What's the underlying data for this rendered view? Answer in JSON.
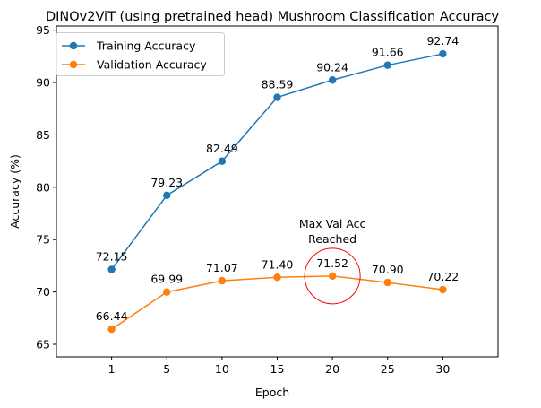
{
  "chart_data": {
    "type": "line",
    "title": "DINOv2ViT (using pretrained head) Mushroom Classification Accuracy",
    "xlabel": "Epoch",
    "ylabel": "Accuracy (%)",
    "x": [
      "1",
      "5",
      "10",
      "15",
      "20",
      "25",
      "30"
    ],
    "xlim": [
      0,
      8
    ],
    "ylim": [
      63.8,
      95.4
    ],
    "yticks": [
      65,
      70,
      75,
      80,
      85,
      90,
      95
    ],
    "grid": false,
    "legend_position": "top-left",
    "series": [
      {
        "name": "Training Accuracy",
        "color": "#1f77b4",
        "values": [
          72.15,
          79.23,
          82.49,
          88.59,
          90.24,
          91.66,
          92.74
        ],
        "labels": [
          "72.15",
          "79.23",
          "82.49",
          "88.59",
          "90.24",
          "91.66",
          "92.74"
        ]
      },
      {
        "name": "Validation Accuracy",
        "color": "#ff7f0e",
        "values": [
          66.44,
          69.99,
          71.07,
          71.4,
          71.52,
          70.9,
          70.22
        ],
        "labels": [
          "66.44",
          "69.99",
          "71.07",
          "71.40",
          "71.52",
          "70.90",
          "70.22"
        ]
      }
    ],
    "annotation": {
      "text_line1": "Max Val Acc",
      "text_line2": "Reached",
      "x_index": 5,
      "y": 71.52,
      "circle_color": "#ff0000"
    }
  }
}
